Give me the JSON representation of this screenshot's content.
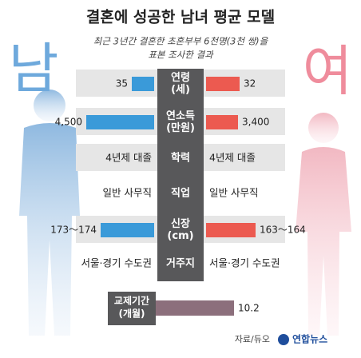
{
  "title": "결혼에 성공한 남녀 평균 모델",
  "subtitle_lines": [
    "최근 3년간 결혼한 초혼부부 6천명(3천 쌍)을",
    "표본 조사한 결과"
  ],
  "male_label": "남",
  "female_label": "여",
  "rows": [
    {
      "label": [
        "연령",
        "(세)"
      ],
      "male": 35,
      "female": 32
    },
    {
      "label": [
        "연소득",
        "(만원)"
      ],
      "male": {
        "value": 4500,
        "label": "4,500"
      },
      "female": {
        "value": 3400,
        "label": "3,400"
      }
    },
    {
      "label": [
        "학력"
      ],
      "male": "4년제 대졸",
      "female": "4년제 대졸"
    },
    {
      "label": [
        "직업"
      ],
      "male": "일반 사무직",
      "female": "일반 사무직"
    },
    {
      "label": [
        "신장",
        "(cm)"
      ],
      "male": "173～174",
      "female": "163～164"
    },
    {
      "label": [
        "거주지"
      ],
      "male": "서울·경기 수도권",
      "female": "서울·경기 수도권"
    }
  ],
  "dating": {
    "label": [
      "교제기간",
      "(개월)"
    ],
    "value": 10.2
  },
  "source": "자료/듀오",
  "logo": "연합뉴스"
}
